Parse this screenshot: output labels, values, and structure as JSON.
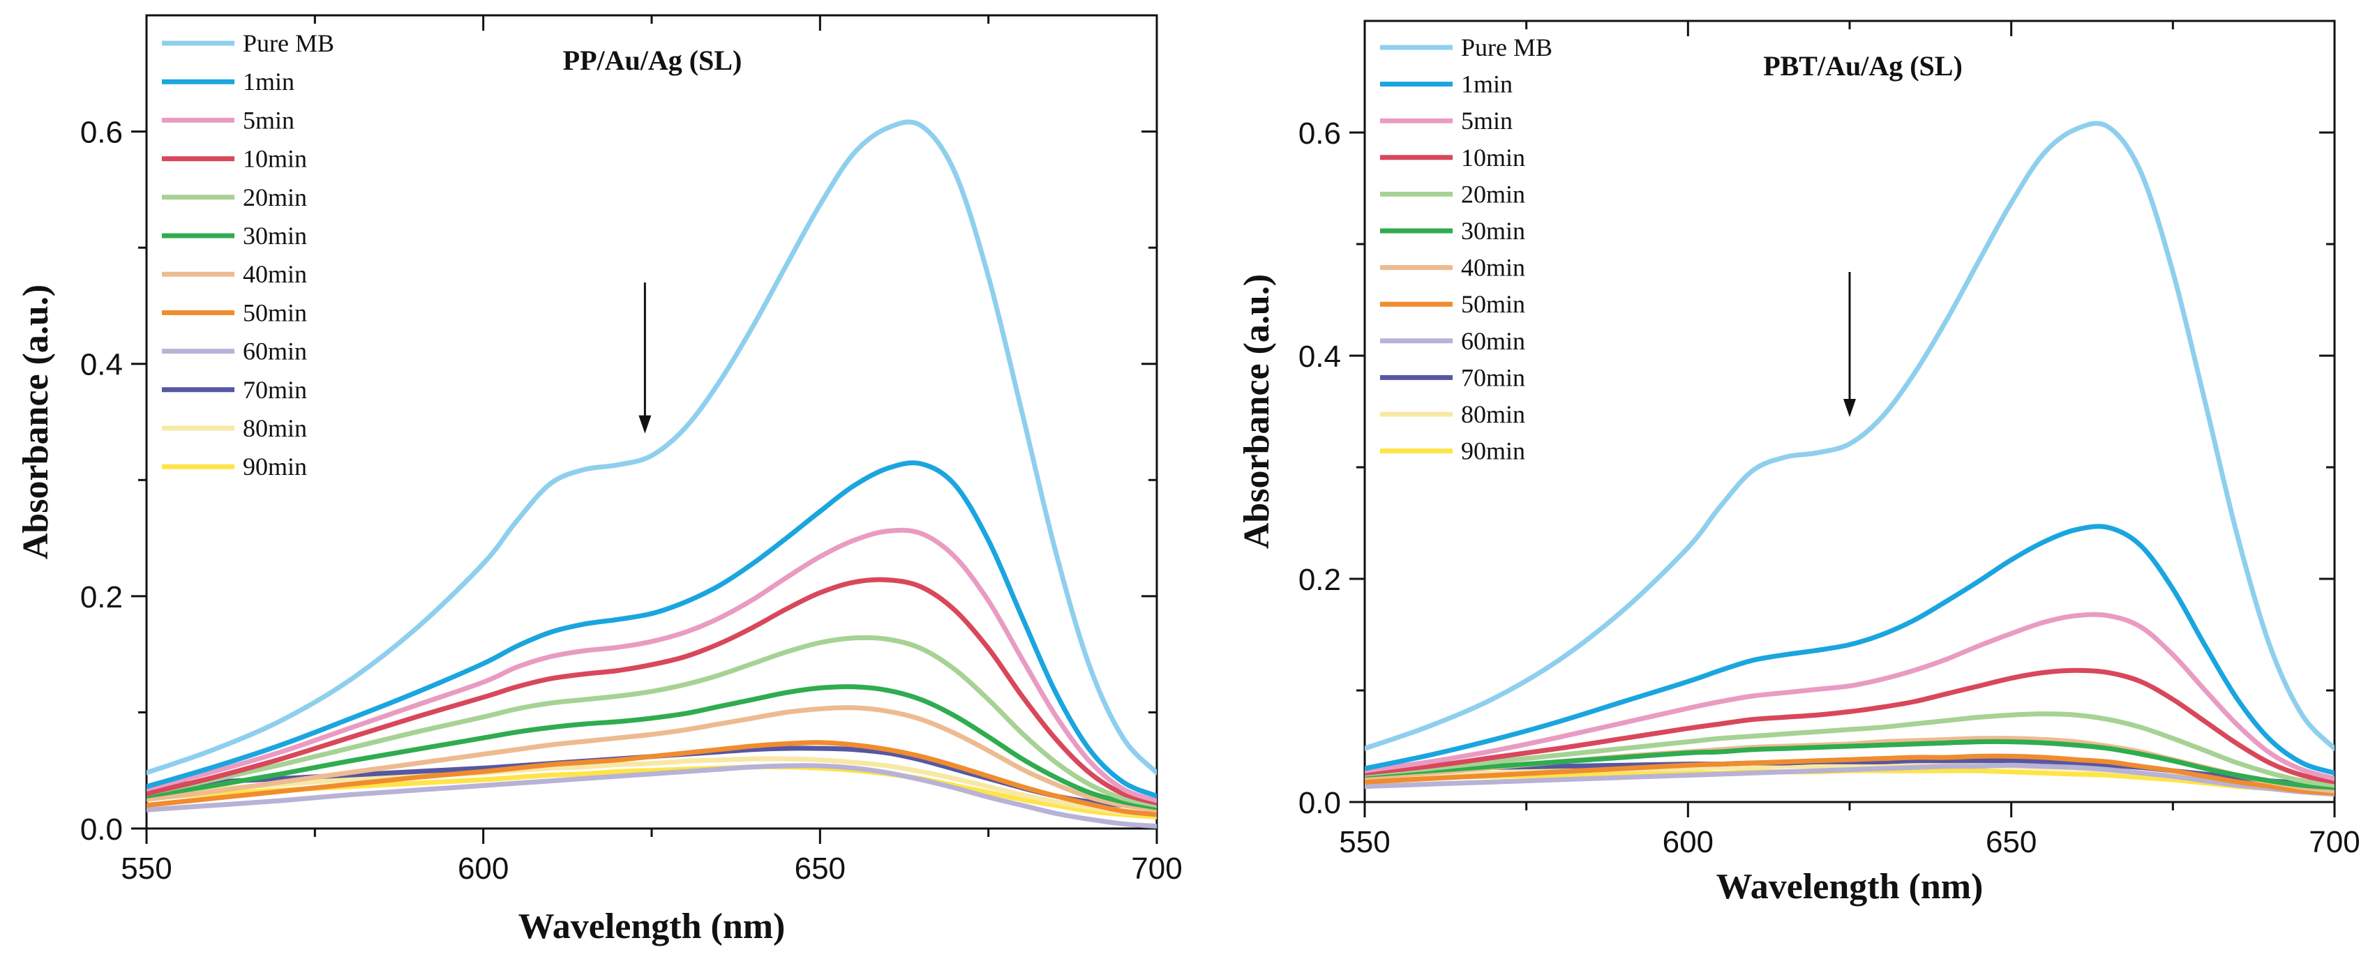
{
  "chart_data": [
    {
      "type": "line",
      "title": "PP/Au/Ag (SL)",
      "xlabel": "Wavelength (nm)",
      "ylabel": "Absorbance (a.u.)",
      "xlim": [
        550,
        700
      ],
      "ylim": [
        0,
        0.7
      ],
      "xticks": [
        550,
        600,
        650,
        700
      ],
      "xtick_labels": [
        "550",
        "600",
        "650",
        "700"
      ],
      "yticks": [
        0,
        0.2,
        0.4,
        0.6
      ],
      "ytick_labels": [
        "0.0",
        "0.2",
        "0.4",
        "0.6"
      ],
      "annotation": "downward arrow at ~624 nm indicating decrease over time",
      "legend_position": "top-left",
      "x": [
        550,
        560,
        570,
        580,
        590,
        600,
        605,
        610,
        615,
        620,
        625,
        630,
        635,
        640,
        645,
        650,
        655,
        660,
        665,
        670,
        675,
        680,
        685,
        690,
        695,
        700
      ],
      "series": [
        {
          "name": "Pure MB",
          "color": "#8ECFEE",
          "values": [
            0.048,
            0.068,
            0.093,
            0.127,
            0.172,
            0.228,
            0.265,
            0.297,
            0.309,
            0.313,
            0.321,
            0.345,
            0.384,
            0.432,
            0.485,
            0.537,
            0.581,
            0.603,
            0.605,
            0.565,
            0.475,
            0.358,
            0.238,
            0.14,
            0.078,
            0.048
          ]
        },
        {
          "name": "1min",
          "color": "#1AA5DF",
          "values": [
            0.036,
            0.053,
            0.072,
            0.094,
            0.117,
            0.142,
            0.157,
            0.169,
            0.176,
            0.18,
            0.185,
            0.195,
            0.209,
            0.228,
            0.25,
            0.273,
            0.295,
            0.31,
            0.314,
            0.296,
            0.248,
            0.182,
            0.117,
            0.068,
            0.04,
            0.028
          ]
        },
        {
          "name": "5min",
          "color": "#E99BC2",
          "values": [
            0.034,
            0.049,
            0.066,
            0.086,
            0.106,
            0.126,
            0.139,
            0.148,
            0.153,
            0.156,
            0.161,
            0.169,
            0.181,
            0.197,
            0.216,
            0.234,
            0.248,
            0.256,
            0.254,
            0.234,
            0.196,
            0.146,
            0.097,
            0.058,
            0.034,
            0.024
          ]
        },
        {
          "name": "10min",
          "color": "#D9475A",
          "values": [
            0.03,
            0.044,
            0.06,
            0.078,
            0.096,
            0.113,
            0.122,
            0.129,
            0.133,
            0.136,
            0.141,
            0.148,
            0.159,
            0.173,
            0.189,
            0.203,
            0.212,
            0.214,
            0.208,
            0.188,
            0.155,
            0.114,
            0.077,
            0.048,
            0.03,
            0.022
          ]
        },
        {
          "name": "20min",
          "color": "#A6D294",
          "values": [
            0.03,
            0.042,
            0.055,
            0.069,
            0.083,
            0.096,
            0.103,
            0.108,
            0.111,
            0.114,
            0.118,
            0.124,
            0.132,
            0.142,
            0.152,
            0.16,
            0.164,
            0.163,
            0.155,
            0.137,
            0.111,
            0.082,
            0.057,
            0.038,
            0.026,
            0.02
          ]
        },
        {
          "name": "30min",
          "color": "#2FAC4F",
          "values": [
            0.028,
            0.037,
            0.047,
            0.058,
            0.068,
            0.078,
            0.083,
            0.087,
            0.09,
            0.092,
            0.095,
            0.099,
            0.105,
            0.111,
            0.117,
            0.121,
            0.122,
            0.119,
            0.111,
            0.097,
            0.079,
            0.06,
            0.044,
            0.031,
            0.023,
            0.018
          ]
        },
        {
          "name": "40min",
          "color": "#EDBB91",
          "values": [
            0.025,
            0.032,
            0.04,
            0.048,
            0.056,
            0.064,
            0.068,
            0.072,
            0.075,
            0.078,
            0.081,
            0.085,
            0.09,
            0.095,
            0.1,
            0.103,
            0.104,
            0.101,
            0.094,
            0.082,
            0.067,
            0.051,
            0.038,
            0.027,
            0.02,
            0.016
          ]
        },
        {
          "name": "50min",
          "color": "#F08C2E",
          "values": [
            0.02,
            0.026,
            0.032,
            0.038,
            0.044,
            0.049,
            0.052,
            0.055,
            0.057,
            0.059,
            0.062,
            0.065,
            0.068,
            0.071,
            0.073,
            0.074,
            0.072,
            0.068,
            0.062,
            0.054,
            0.045,
            0.036,
            0.028,
            0.021,
            0.015,
            0.012
          ]
        },
        {
          "name": "60min",
          "color": "#B7B2D6",
          "values": [
            0.016,
            0.02,
            0.024,
            0.029,
            0.033,
            0.037,
            0.039,
            0.041,
            0.043,
            0.045,
            0.047,
            0.049,
            0.051,
            0.053,
            0.054,
            0.054,
            0.052,
            0.048,
            0.042,
            0.035,
            0.027,
            0.02,
            0.013,
            0.008,
            0.004,
            0.002
          ]
        },
        {
          "name": "70min",
          "color": "#5657A3",
          "values": [
            0.036,
            0.04,
            0.043,
            0.046,
            0.049,
            0.052,
            0.054,
            0.056,
            0.058,
            0.06,
            0.062,
            0.064,
            0.066,
            0.068,
            0.069,
            0.069,
            0.068,
            0.065,
            0.059,
            0.051,
            0.043,
            0.035,
            0.028,
            0.023,
            0.02,
            0.018
          ]
        },
        {
          "name": "80min",
          "color": "#F7E9A5",
          "values": [
            0.03,
            0.034,
            0.038,
            0.042,
            0.045,
            0.048,
            0.05,
            0.052,
            0.053,
            0.055,
            0.056,
            0.058,
            0.059,
            0.06,
            0.06,
            0.059,
            0.057,
            0.054,
            0.049,
            0.043,
            0.036,
            0.029,
            0.023,
            0.018,
            0.014,
            0.012
          ]
        },
        {
          "name": "90min",
          "color": "#FFE449",
          "values": [
            0.026,
            0.03,
            0.033,
            0.036,
            0.039,
            0.042,
            0.044,
            0.046,
            0.047,
            0.049,
            0.05,
            0.051,
            0.052,
            0.053,
            0.053,
            0.052,
            0.05,
            0.047,
            0.043,
            0.037,
            0.031,
            0.025,
            0.02,
            0.015,
            0.012,
            0.01
          ]
        }
      ]
    },
    {
      "type": "line",
      "title": "PBT/Au/Ag (SL)",
      "xlabel": "Wavelength (nm)",
      "ylabel": "Absorbance (a.u.)",
      "xlim": [
        550,
        700
      ],
      "ylim": [
        0,
        0.7
      ],
      "xticks": [
        550,
        600,
        650,
        700
      ],
      "xtick_labels": [
        "550",
        "600",
        "650",
        "700"
      ],
      "yticks": [
        0,
        0.2,
        0.4,
        0.6
      ],
      "ytick_labels": [
        "0.0",
        "0.2",
        "0.4",
        "0.6"
      ],
      "annotation": "downward arrow at ~625 nm indicating decrease over time",
      "legend_position": "top-left",
      "x": [
        550,
        560,
        570,
        580,
        590,
        600,
        605,
        610,
        615,
        620,
        625,
        630,
        635,
        640,
        645,
        650,
        655,
        660,
        665,
        670,
        675,
        680,
        685,
        690,
        695,
        700
      ],
      "series": [
        {
          "name": "Pure MB",
          "color": "#8ECFEE",
          "values": [
            0.048,
            0.068,
            0.093,
            0.127,
            0.172,
            0.228,
            0.265,
            0.297,
            0.309,
            0.313,
            0.321,
            0.345,
            0.384,
            0.432,
            0.485,
            0.537,
            0.581,
            0.603,
            0.605,
            0.565,
            0.475,
            0.358,
            0.238,
            0.14,
            0.078,
            0.048
          ]
        },
        {
          "name": "1min",
          "color": "#1AA5DF",
          "values": [
            0.03,
            0.042,
            0.056,
            0.072,
            0.09,
            0.108,
            0.118,
            0.127,
            0.132,
            0.136,
            0.141,
            0.15,
            0.163,
            0.18,
            0.198,
            0.217,
            0.233,
            0.244,
            0.246,
            0.23,
            0.191,
            0.14,
            0.092,
            0.056,
            0.035,
            0.026
          ]
        },
        {
          "name": "5min",
          "color": "#E99BC2",
          "values": [
            0.028,
            0.036,
            0.046,
            0.058,
            0.071,
            0.084,
            0.09,
            0.095,
            0.098,
            0.101,
            0.104,
            0.11,
            0.118,
            0.128,
            0.14,
            0.151,
            0.161,
            0.167,
            0.167,
            0.157,
            0.132,
            0.1,
            0.069,
            0.044,
            0.029,
            0.021
          ]
        },
        {
          "name": "10min",
          "color": "#D9475A",
          "values": [
            0.026,
            0.032,
            0.04,
            0.048,
            0.057,
            0.066,
            0.07,
            0.074,
            0.076,
            0.078,
            0.081,
            0.085,
            0.09,
            0.097,
            0.104,
            0.111,
            0.116,
            0.118,
            0.116,
            0.108,
            0.092,
            0.072,
            0.052,
            0.035,
            0.024,
            0.018
          ]
        },
        {
          "name": "20min",
          "color": "#A6D294",
          "values": [
            0.025,
            0.03,
            0.036,
            0.042,
            0.048,
            0.054,
            0.057,
            0.059,
            0.061,
            0.063,
            0.065,
            0.067,
            0.07,
            0.073,
            0.076,
            0.078,
            0.079,
            0.078,
            0.074,
            0.067,
            0.057,
            0.046,
            0.035,
            0.026,
            0.019,
            0.015
          ]
        },
        {
          "name": "30min",
          "color": "#2FAC4F",
          "values": [
            0.024,
            0.028,
            0.032,
            0.036,
            0.04,
            0.044,
            0.045,
            0.047,
            0.048,
            0.049,
            0.05,
            0.051,
            0.052,
            0.053,
            0.054,
            0.054,
            0.053,
            0.051,
            0.048,
            0.043,
            0.037,
            0.03,
            0.024,
            0.019,
            0.015,
            0.013
          ]
        },
        {
          "name": "40min",
          "color": "#EDBB91",
          "values": [
            0.022,
            0.026,
            0.031,
            0.036,
            0.041,
            0.045,
            0.047,
            0.049,
            0.05,
            0.051,
            0.052,
            0.054,
            0.055,
            0.056,
            0.057,
            0.057,
            0.056,
            0.054,
            0.05,
            0.045,
            0.038,
            0.031,
            0.024,
            0.018,
            0.013,
            0.01
          ]
        },
        {
          "name": "50min",
          "color": "#F08C2E",
          "values": [
            0.018,
            0.021,
            0.024,
            0.027,
            0.03,
            0.033,
            0.034,
            0.035,
            0.036,
            0.037,
            0.038,
            0.039,
            0.04,
            0.04,
            0.041,
            0.041,
            0.04,
            0.038,
            0.036,
            0.032,
            0.028,
            0.023,
            0.018,
            0.014,
            0.01,
            0.008
          ]
        },
        {
          "name": "60min",
          "color": "#B7B2D6",
          "values": [
            0.014,
            0.016,
            0.018,
            0.02,
            0.022,
            0.024,
            0.025,
            0.026,
            0.027,
            0.028,
            0.029,
            0.03,
            0.031,
            0.032,
            0.032,
            0.033,
            0.032,
            0.031,
            0.029,
            0.026,
            0.023,
            0.019,
            0.015,
            0.012,
            0.009,
            0.007
          ]
        },
        {
          "name": "70min",
          "color": "#5657A3",
          "values": [
            0.028,
            0.03,
            0.031,
            0.032,
            0.033,
            0.034,
            0.034,
            0.035,
            0.035,
            0.036,
            0.036,
            0.036,
            0.037,
            0.037,
            0.037,
            0.037,
            0.036,
            0.035,
            0.033,
            0.031,
            0.028,
            0.025,
            0.022,
            0.019,
            0.017,
            0.015
          ]
        },
        {
          "name": "80min",
          "color": "#F7E9A5",
          "values": [
            0.023,
            0.025,
            0.026,
            0.028,
            0.029,
            0.03,
            0.031,
            0.031,
            0.032,
            0.032,
            0.032,
            0.033,
            0.033,
            0.033,
            0.033,
            0.032,
            0.031,
            0.03,
            0.028,
            0.026,
            0.023,
            0.02,
            0.017,
            0.014,
            0.012,
            0.01
          ]
        },
        {
          "name": "90min",
          "color": "#FFE449",
          "values": [
            0.02,
            0.022,
            0.023,
            0.024,
            0.025,
            0.026,
            0.026,
            0.027,
            0.027,
            0.027,
            0.028,
            0.028,
            0.028,
            0.028,
            0.028,
            0.027,
            0.026,
            0.025,
            0.024,
            0.022,
            0.02,
            0.017,
            0.014,
            0.012,
            0.01,
            0.008
          ]
        }
      ]
    }
  ]
}
